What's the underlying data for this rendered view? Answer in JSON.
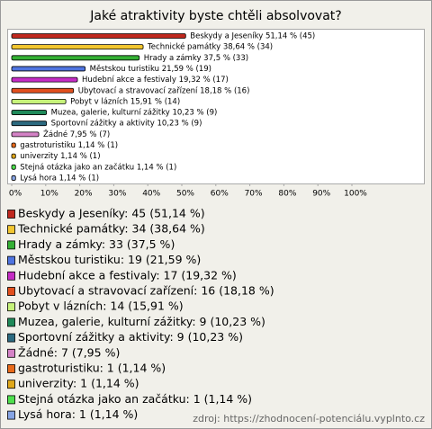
{
  "chart_data": {
    "type": "bar",
    "orientation": "horizontal",
    "title": "Jaké atraktivity byste chtěli absolvovat?",
    "categories": [
      "Beskydy a Jeseníky",
      "Technické památky",
      "Hrady a zámky",
      "Městskou turistiku",
      "Hudební akce a festivaly",
      "Ubytovací a stravovací zařízení",
      "Pobyt v lázních",
      "Muzea, galerie, kulturní zážitky",
      "Sportovní zážitky a aktivity",
      "Žádné",
      "gastroturistiku",
      "univerzity",
      "Stejná otázka jako an začátku",
      "Lysá hora"
    ],
    "values": [
      51.14,
      38.64,
      37.5,
      21.59,
      19.32,
      18.18,
      15.91,
      10.23,
      10.23,
      7.95,
      1.14,
      1.14,
      1.14,
      1.14
    ],
    "value_labels": [
      "Beskydy a Jeseníky 51,14 % (45)",
      "Technické památky 38,64 % (34)",
      "Hrady a zámky 37,5 % (33)",
      "Městskou turistiku 21,59 % (19)",
      "Hudební akce a festivaly 19,32 % (17)",
      "Ubytovací a stravovací zařízení 18,18 % (16)",
      "Pobyt v lázních 15,91 % (14)",
      "Muzea, galerie, kulturní zážitky 10,23 % (9)",
      "Sportovní zážitky a aktivity 10,23 % (9)",
      "Žádné 7,95 % (7)",
      "gastroturistiku 1,14 % (1)",
      "univerzity 1,14 % (1)",
      "Stejná otázka jako an začátku 1,14 % (1)",
      "Lysá hora 1,14 % (1)"
    ],
    "legend_labels": [
      "Beskydy a Jeseníky: 45 (51,14 %)",
      "Technické památky: 34 (38,64 %)",
      "Hrady a zámky: 33 (37,5 %)",
      "Městskou turistiku: 19 (21,59 %)",
      "Hudební akce a festivaly: 17 (19,32 %)",
      "Ubytovací a stravovací zařízení: 16 (18,18 %)",
      "Pobyt v lázních: 14 (15,91 %)",
      "Muzea, galerie, kulturní zážitky: 9 (10,23 %)",
      "Sportovní zážitky a aktivity: 9 (10,23 %)",
      "Žádné: 7 (7,95 %)",
      "gastroturistiku: 1 (1,14 %)",
      "univerzity: 1 (1,14 %)",
      "Stejná otázka jako an začátku: 1 (1,14 %)",
      "Lysá hora: 1 (1,14 %)"
    ],
    "colors": [
      "#c0281e",
      "#f2c630",
      "#34b034",
      "#4f74e0",
      "#c42cc4",
      "#e2501e",
      "#c6f27a",
      "#1f8a5a",
      "#2c6a80",
      "#d482c6",
      "#e86a1a",
      "#e0a81a",
      "#4ee04e",
      "#86a4e4"
    ],
    "xlim": [
      0,
      100
    ],
    "xticks": [
      {
        "value": 0,
        "label": "0%"
      },
      {
        "value": 10,
        "label": "10%"
      },
      {
        "value": 20,
        "label": "20%"
      },
      {
        "value": 30,
        "label": "30%"
      },
      {
        "value": 40,
        "label": "40%"
      },
      {
        "value": 50,
        "label": "50%"
      },
      {
        "value": 60,
        "label": "60%"
      },
      {
        "value": 70,
        "label": "70%"
      },
      {
        "value": 80,
        "label": "80%"
      },
      {
        "value": 90,
        "label": "90%"
      },
      {
        "value": 100,
        "label": "100%"
      }
    ],
    "source": "zdroj: https://zhodnocení-potenciálu.vyplnto.cz"
  }
}
